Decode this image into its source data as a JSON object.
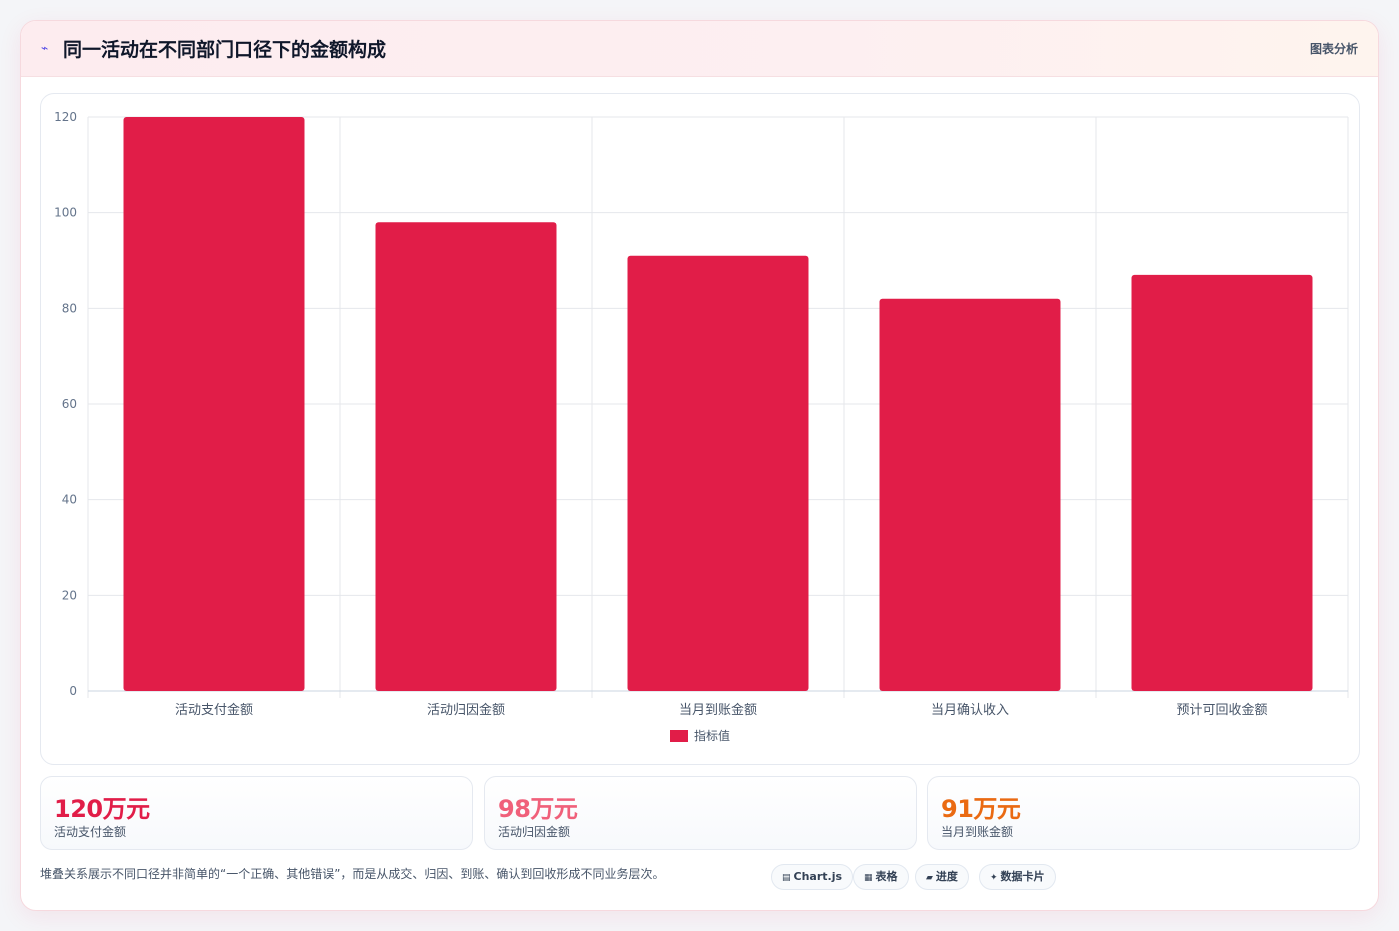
{
  "header": {
    "title": "同一活动在不同部门口径下的金额构成",
    "action": "图表分析",
    "icon": "trend-icon"
  },
  "chart_data": {
    "type": "bar",
    "categories": [
      "活动支付金额",
      "活动归因金额",
      "当月到账金额",
      "当月确认收入",
      "预计可回收金额"
    ],
    "series": [
      {
        "name": "指标值",
        "values": [
          120,
          98,
          91,
          82,
          87
        ],
        "color": "#e11d48"
      }
    ],
    "ylim": [
      0,
      120
    ],
    "yticks": [
      "0",
      "20",
      "40",
      "60",
      "80",
      "100",
      "120"
    ],
    "grid": true,
    "legend": "bottom"
  },
  "stats": [
    {
      "value": "120万元",
      "label": "活动支付金额",
      "color": "#e11d48"
    },
    {
      "value": "98万元",
      "label": "活动归因金额",
      "color": "#f0607a"
    },
    {
      "value": "91万元",
      "label": "当月到账金额",
      "color": "#ea6a12"
    }
  ],
  "note": "堆叠关系展示不同口径并非简单的“一个正确、其他错误”，而是从成交、归因、到账、确认到回收形成不同业务层次。",
  "chips": [
    {
      "label": "Chart.js",
      "icon": "chart-icon",
      "glyph": "▤"
    },
    {
      "label": "表格",
      "icon": "table-icon",
      "glyph": "▦"
    },
    {
      "label": "进度",
      "icon": "progress-icon",
      "glyph": "▰"
    },
    {
      "label": "数据卡片",
      "icon": "sparkle-icon",
      "glyph": "✦"
    }
  ]
}
